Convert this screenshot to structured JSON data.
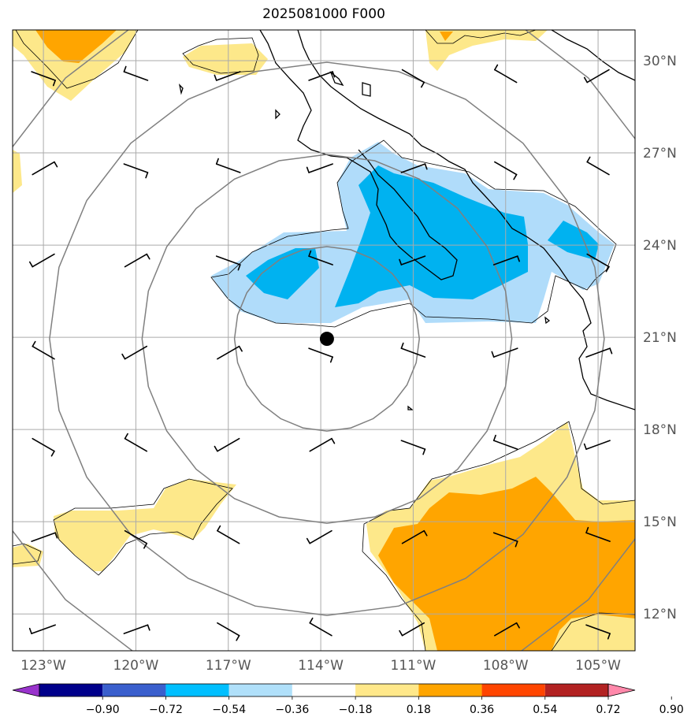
{
  "title": "2025081000 F000",
  "map": {
    "lon_range": [
      -124.0,
      -103.8
    ],
    "lat_range": [
      10.8,
      31.0
    ],
    "lon_ticks": [
      {
        "value": -123,
        "label": "123°W"
      },
      {
        "value": -120,
        "label": "120°W"
      },
      {
        "value": -117,
        "label": "117°W"
      },
      {
        "value": -114,
        "label": "114°W"
      },
      {
        "value": -111,
        "label": "111°W"
      },
      {
        "value": -108,
        "label": "108°W"
      },
      {
        "value": -105,
        "label": "105°W"
      }
    ],
    "lat_ticks": [
      {
        "value": 12,
        "label": "12°N"
      },
      {
        "value": 15,
        "label": "15°N"
      },
      {
        "value": 18,
        "label": "18°N"
      },
      {
        "value": 21,
        "label": "21°N"
      },
      {
        "value": 24,
        "label": "24°N"
      },
      {
        "value": 27,
        "label": "27°N"
      },
      {
        "value": 30,
        "label": "30°N"
      }
    ],
    "grid": true,
    "storm_center": {
      "lon": -113.8,
      "lat": 20.95
    },
    "range_rings_deg": [
      3,
      6,
      9,
      12
    ],
    "colors": {
      "light_blue": "#b0dcfa",
      "blue": "#00b2f0",
      "light_yellow": "#fde88a",
      "orange": "#ffa500",
      "grid": "#aaaaaa",
      "rings": "#808080",
      "coast": "#000000"
    }
  },
  "colorbar": {
    "colors": [
      "#9933cc",
      "#00008b",
      "#3a5fcd",
      "#00bfff",
      "#b0e0fa",
      "#ffffff",
      "#ffe88a",
      "#ffa500",
      "#ff4500",
      "#b22222",
      "#ff88aa"
    ],
    "tick_labels": [
      "−0.90",
      "−0.72",
      "−0.54",
      "−0.36",
      "−0.18",
      "0.18",
      "0.36",
      "0.54",
      "0.72",
      "0.90"
    ]
  }
}
